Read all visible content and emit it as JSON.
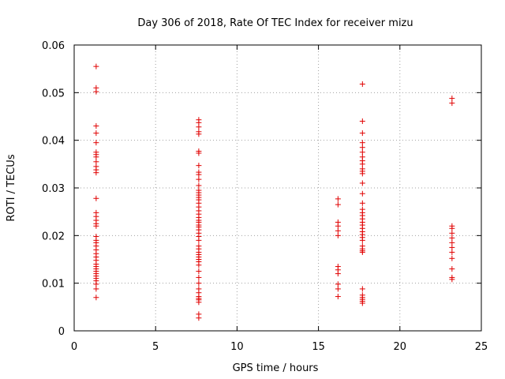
{
  "chart_data": {
    "type": "scatter",
    "title": "Day 306 of 2018, Rate Of TEC Index for receiver mizu",
    "xlabel": "GPS time / hours",
    "ylabel": "ROTI / TECUs",
    "xlim": [
      0,
      25
    ],
    "ylim": [
      0,
      0.06
    ],
    "xticks": [
      0,
      5,
      10,
      15,
      20,
      25
    ],
    "xtick_labels": [
      "0",
      "5",
      "10",
      "15",
      "20",
      "25"
    ],
    "yticks": [
      0,
      0.01,
      0.02,
      0.03,
      0.04,
      0.05,
      0.06
    ],
    "ytick_labels": [
      "0",
      "0.01",
      "0.02",
      "0.03",
      "0.04",
      "0.05",
      "0.06"
    ],
    "grid": true,
    "marker": "plus",
    "color": "#e00000",
    "series": [
      {
        "name": "ROTI",
        "points": [
          [
            1.35,
            0.0555
          ],
          [
            1.35,
            0.051
          ],
          [
            1.35,
            0.0502
          ],
          [
            1.35,
            0.043
          ],
          [
            1.35,
            0.0415
          ],
          [
            1.35,
            0.0395
          ],
          [
            1.35,
            0.0375
          ],
          [
            1.35,
            0.037
          ],
          [
            1.35,
            0.0365
          ],
          [
            1.35,
            0.0355
          ],
          [
            1.35,
            0.0345
          ],
          [
            1.35,
            0.0338
          ],
          [
            1.35,
            0.0332
          ],
          [
            1.35,
            0.0278
          ],
          [
            1.35,
            0.0248
          ],
          [
            1.35,
            0.024
          ],
          [
            1.35,
            0.0232
          ],
          [
            1.35,
            0.0225
          ],
          [
            1.35,
            0.022
          ],
          [
            1.35,
            0.0198
          ],
          [
            1.35,
            0.019
          ],
          [
            1.35,
            0.0185
          ],
          [
            1.35,
            0.0178
          ],
          [
            1.35,
            0.017
          ],
          [
            1.35,
            0.0162
          ],
          [
            1.35,
            0.0155
          ],
          [
            1.35,
            0.0148
          ],
          [
            1.35,
            0.014
          ],
          [
            1.35,
            0.0135
          ],
          [
            1.35,
            0.013
          ],
          [
            1.35,
            0.0125
          ],
          [
            1.35,
            0.012
          ],
          [
            1.35,
            0.0115
          ],
          [
            1.35,
            0.011
          ],
          [
            1.35,
            0.0105
          ],
          [
            1.35,
            0.0098
          ],
          [
            1.35,
            0.0088
          ],
          [
            1.35,
            0.007
          ],
          [
            7.65,
            0.0443
          ],
          [
            7.65,
            0.0437
          ],
          [
            7.65,
            0.0428
          ],
          [
            7.65,
            0.0418
          ],
          [
            7.65,
            0.0413
          ],
          [
            7.65,
            0.0377
          ],
          [
            7.65,
            0.0373
          ],
          [
            7.65,
            0.0347
          ],
          [
            7.65,
            0.0333
          ],
          [
            7.65,
            0.0328
          ],
          [
            7.65,
            0.0318
          ],
          [
            7.65,
            0.0305
          ],
          [
            7.65,
            0.0295
          ],
          [
            7.65,
            0.029
          ],
          [
            7.65,
            0.0285
          ],
          [
            7.65,
            0.028
          ],
          [
            7.65,
            0.0275
          ],
          [
            7.65,
            0.0268
          ],
          [
            7.65,
            0.026
          ],
          [
            7.65,
            0.0252
          ],
          [
            7.65,
            0.0245
          ],
          [
            7.65,
            0.0238
          ],
          [
            7.65,
            0.0232
          ],
          [
            7.65,
            0.0228
          ],
          [
            7.65,
            0.0222
          ],
          [
            7.65,
            0.0218
          ],
          [
            7.65,
            0.0212
          ],
          [
            7.65,
            0.0205
          ],
          [
            7.65,
            0.0198
          ],
          [
            7.65,
            0.019
          ],
          [
            7.65,
            0.0178
          ],
          [
            7.65,
            0.0172
          ],
          [
            7.65,
            0.0165
          ],
          [
            7.65,
            0.016
          ],
          [
            7.65,
            0.0155
          ],
          [
            7.65,
            0.015
          ],
          [
            7.65,
            0.0145
          ],
          [
            7.65,
            0.0138
          ],
          [
            7.65,
            0.0125
          ],
          [
            7.65,
            0.0112
          ],
          [
            7.65,
            0.01
          ],
          [
            7.65,
            0.0088
          ],
          [
            7.65,
            0.008
          ],
          [
            7.65,
            0.0072
          ],
          [
            7.65,
            0.0068
          ],
          [
            7.65,
            0.0065
          ],
          [
            7.65,
            0.006
          ],
          [
            7.65,
            0.0035
          ],
          [
            7.65,
            0.0027
          ],
          [
            16.2,
            0.0277
          ],
          [
            16.2,
            0.0265
          ],
          [
            16.2,
            0.0228
          ],
          [
            16.2,
            0.022
          ],
          [
            16.2,
            0.021
          ],
          [
            16.2,
            0.02
          ],
          [
            16.2,
            0.0135
          ],
          [
            16.2,
            0.0128
          ],
          [
            16.2,
            0.012
          ],
          [
            16.2,
            0.0098
          ],
          [
            16.2,
            0.0088
          ],
          [
            16.2,
            0.0072
          ],
          [
            17.7,
            0.0518
          ],
          [
            17.7,
            0.044
          ],
          [
            17.7,
            0.0415
          ],
          [
            17.7,
            0.0395
          ],
          [
            17.7,
            0.0385
          ],
          [
            17.7,
            0.0375
          ],
          [
            17.7,
            0.0365
          ],
          [
            17.7,
            0.0357
          ],
          [
            17.7,
            0.035
          ],
          [
            17.7,
            0.034
          ],
          [
            17.7,
            0.0335
          ],
          [
            17.7,
            0.033
          ],
          [
            17.7,
            0.031
          ],
          [
            17.7,
            0.0288
          ],
          [
            17.7,
            0.0268
          ],
          [
            17.7,
            0.0255
          ],
          [
            17.7,
            0.0248
          ],
          [
            17.7,
            0.0242
          ],
          [
            17.7,
            0.0235
          ],
          [
            17.7,
            0.0228
          ],
          [
            17.7,
            0.0222
          ],
          [
            17.7,
            0.0215
          ],
          [
            17.7,
            0.0208
          ],
          [
            17.7,
            0.0202
          ],
          [
            17.7,
            0.0196
          ],
          [
            17.7,
            0.019
          ],
          [
            17.7,
            0.0178
          ],
          [
            17.7,
            0.0172
          ],
          [
            17.7,
            0.0168
          ],
          [
            17.7,
            0.0165
          ],
          [
            17.7,
            0.0088
          ],
          [
            17.7,
            0.0075
          ],
          [
            17.7,
            0.007
          ],
          [
            17.7,
            0.0066
          ],
          [
            17.7,
            0.0062
          ],
          [
            17.7,
            0.0058
          ],
          [
            23.2,
            0.0488
          ],
          [
            23.2,
            0.0478
          ],
          [
            23.2,
            0.022
          ],
          [
            23.2,
            0.0215
          ],
          [
            23.2,
            0.0205
          ],
          [
            23.2,
            0.0195
          ],
          [
            23.2,
            0.0185
          ],
          [
            23.2,
            0.0175
          ],
          [
            23.2,
            0.0165
          ],
          [
            23.2,
            0.0152
          ],
          [
            23.2,
            0.013
          ],
          [
            23.2,
            0.0112
          ],
          [
            23.2,
            0.0108
          ]
        ]
      }
    ]
  }
}
